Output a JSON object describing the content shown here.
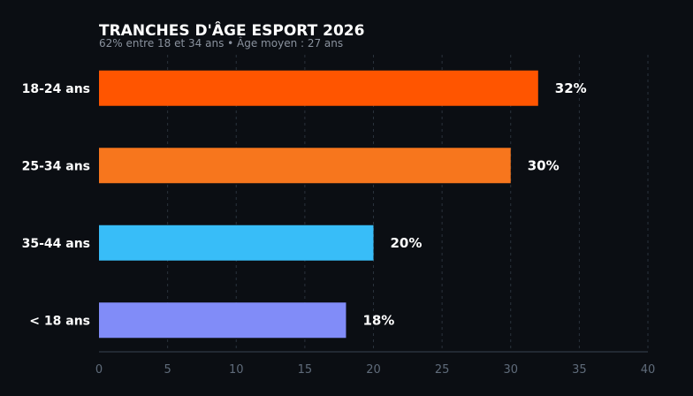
{
  "chart_data": {
    "type": "bar",
    "orientation": "horizontal",
    "title": "TRANCHES D'ÂGE ESPORT 2026",
    "subtitle": "62% entre 18 et 34 ans • Âge moyen : 27 ans",
    "categories": [
      "18-24 ans",
      "25-34 ans",
      "35-44 ans",
      "< 18 ans"
    ],
    "values": [
      32,
      30,
      20,
      18
    ],
    "value_labels": [
      "32%",
      "30%",
      "20%",
      "18%"
    ],
    "colors": [
      "#ff5500",
      "#f7761d",
      "#38bdf8",
      "#818cf8"
    ],
    "xlim": [
      0,
      40
    ],
    "xticks": [
      "0",
      "5",
      "10",
      "15",
      "20",
      "25",
      "30",
      "35",
      "40"
    ],
    "grid": true,
    "legend": "none"
  }
}
